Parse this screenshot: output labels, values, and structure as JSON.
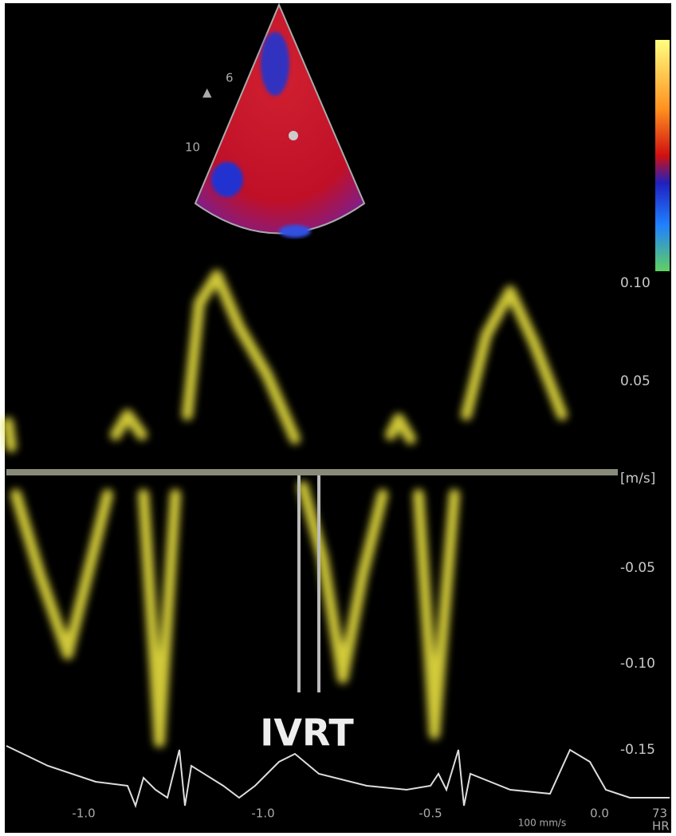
{
  "sector": {
    "depth_labels": [
      "6",
      "10"
    ]
  },
  "velocity_scale": {
    "labels": [
      "0.10",
      "0.05",
      "[m/s]",
      "-0.05",
      "-0.10",
      "-0.15"
    ]
  },
  "annotation": "IVRT",
  "time_axis": {
    "labels": [
      "-1.0",
      "-1.0",
      "-0.5",
      "0.0"
    ],
    "sweep": "100 mm/s"
  },
  "heart_rate": {
    "value": "73",
    "label": "HR"
  }
}
